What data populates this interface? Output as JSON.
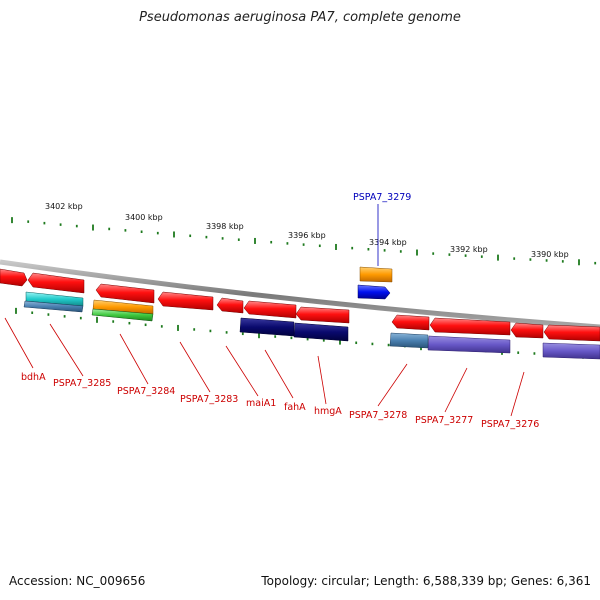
{
  "title": "Pseudomonas aeruginosa PA7, complete genome",
  "accession": "Accession: NC_009656",
  "summary": "Topology: circular; Length: 6,588,339 bp; Genes: 6,361",
  "colors": {
    "backbone": "#8c8c8c",
    "tick": "#1e7a1e",
    "gene_red": "#ee1111",
    "label_red": "#cc0000",
    "label_blue": "#0000bb"
  },
  "scale_labels": [
    "3402 kbp",
    "3400 kbp",
    "3398 kbp",
    "3396 kbp",
    "3394 kbp",
    "3392 kbp",
    "3390 kbp"
  ],
  "gene_labels": [
    "PSPA7_3279",
    "bdhA",
    "PSPA7_3285",
    "PSPA7_3284",
    "PSPA7_3283",
    "maiA1",
    "fahA",
    "hmgA",
    "PSPA7_3278",
    "PSPA7_3277",
    "PSPA7_3276"
  ]
}
